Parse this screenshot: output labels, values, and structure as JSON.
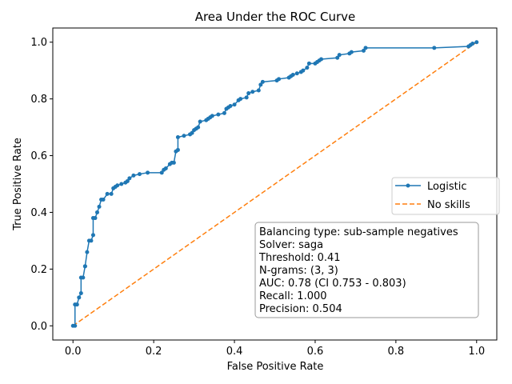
{
  "chart_data": {
    "type": "line",
    "title": "Area Under the ROC Curve",
    "xlabel": "False Positive Rate",
    "ylabel": "True Positive Rate",
    "xlim": [
      -0.05,
      1.05
    ],
    "ylim": [
      -0.05,
      1.05
    ],
    "xticks": [
      "0.0",
      "0.2",
      "0.4",
      "0.6",
      "0.8",
      "1.0"
    ],
    "yticks": [
      "0.0",
      "0.2",
      "0.4",
      "0.6",
      "0.8",
      "1.0"
    ],
    "grid": false,
    "legend_position": "center-right",
    "series": [
      {
        "name": "Logistic",
        "color": "#1f77b4",
        "style": "solid-step-with-dot-markers",
        "x": [
          0.0,
          0.005,
          0.005,
          0.01,
          0.015,
          0.02,
          0.02,
          0.025,
          0.03,
          0.03,
          0.035,
          0.04,
          0.045,
          0.05,
          0.05,
          0.055,
          0.06,
          0.065,
          0.07,
          0.075,
          0.085,
          0.095,
          0.1,
          0.105,
          0.11,
          0.12,
          0.13,
          0.135,
          0.14,
          0.15,
          0.165,
          0.185,
          0.22,
          0.225,
          0.23,
          0.24,
          0.245,
          0.25,
          0.255,
          0.26,
          0.26,
          0.275,
          0.29,
          0.295,
          0.3,
          0.305,
          0.31,
          0.315,
          0.33,
          0.335,
          0.34,
          0.345,
          0.36,
          0.375,
          0.38,
          0.385,
          0.39,
          0.4,
          0.41,
          0.415,
          0.43,
          0.435,
          0.445,
          0.46,
          0.465,
          0.47,
          0.505,
          0.51,
          0.535,
          0.54,
          0.545,
          0.555,
          0.565,
          0.57,
          0.58,
          0.585,
          0.6,
          0.605,
          0.61,
          0.615,
          0.655,
          0.66,
          0.685,
          0.69,
          0.72,
          0.725,
          0.895,
          0.98,
          0.985,
          0.99,
          1.0
        ],
        "y": [
          0.0,
          0.0,
          0.075,
          0.075,
          0.1,
          0.115,
          0.17,
          0.17,
          0.21,
          0.21,
          0.26,
          0.3,
          0.3,
          0.32,
          0.38,
          0.38,
          0.4,
          0.42,
          0.445,
          0.445,
          0.465,
          0.465,
          0.485,
          0.49,
          0.495,
          0.5,
          0.505,
          0.51,
          0.52,
          0.53,
          0.535,
          0.54,
          0.54,
          0.55,
          0.555,
          0.57,
          0.575,
          0.575,
          0.615,
          0.62,
          0.665,
          0.67,
          0.675,
          0.68,
          0.69,
          0.695,
          0.7,
          0.72,
          0.725,
          0.73,
          0.735,
          0.74,
          0.745,
          0.75,
          0.765,
          0.77,
          0.775,
          0.78,
          0.795,
          0.8,
          0.805,
          0.82,
          0.825,
          0.83,
          0.85,
          0.86,
          0.865,
          0.87,
          0.875,
          0.88,
          0.885,
          0.89,
          0.895,
          0.9,
          0.91,
          0.925,
          0.925,
          0.93,
          0.935,
          0.94,
          0.945,
          0.955,
          0.96,
          0.965,
          0.97,
          0.98,
          0.98,
          0.985,
          0.99,
          0.995,
          1.0
        ]
      },
      {
        "name": "No skills",
        "color": "#ff7f0e",
        "style": "dashed",
        "x": [
          0.0,
          1.0
        ],
        "y": [
          0.0,
          1.0
        ]
      }
    ],
    "annotation_lines": [
      "Balancing type:  sub-sample negatives",
      "Solver:  saga",
      "Threshold:  0.41",
      "N-grams:  (3, 3)",
      "AUC:  0.78 (CI 0.753 - 0.803)",
      "Recall:  1.000",
      "Precision:  0.504"
    ]
  }
}
